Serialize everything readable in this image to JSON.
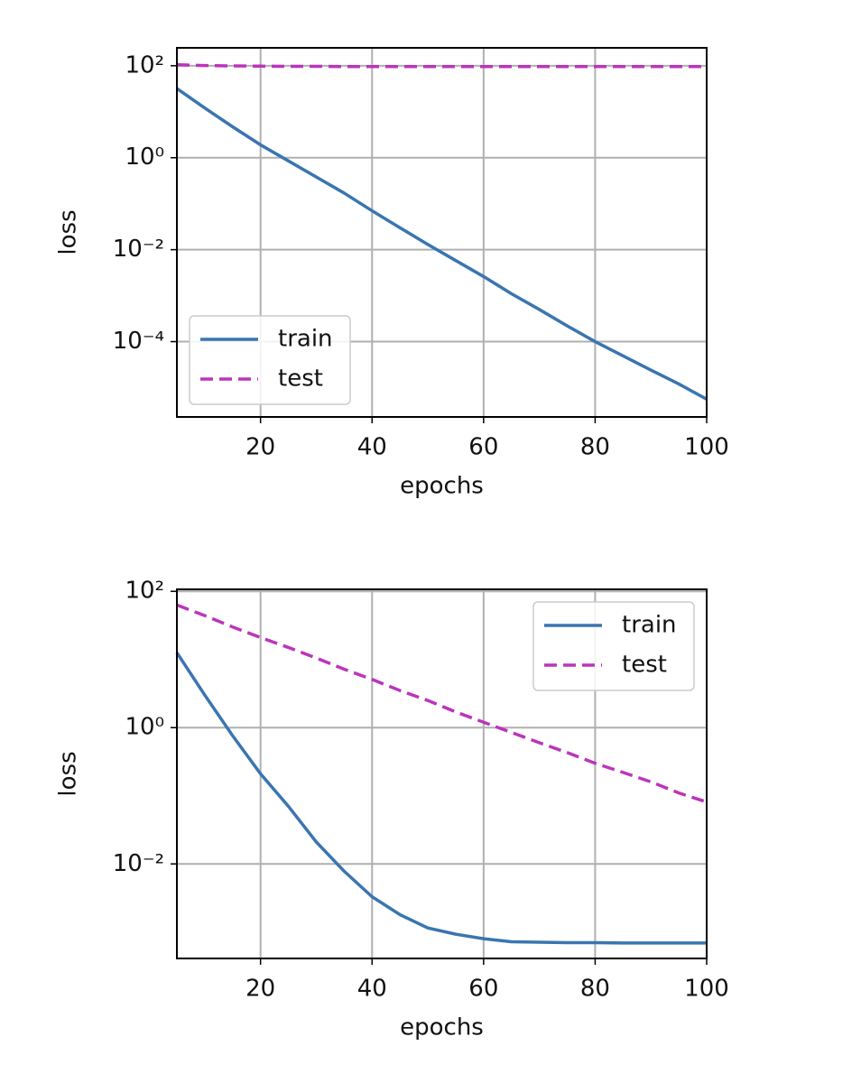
{
  "chart_data": [
    {
      "type": "line",
      "xlabel": "epochs",
      "ylabel": "loss",
      "yscale": "log",
      "grid": true,
      "legend": "lower left",
      "x": [
        5,
        10,
        15,
        20,
        25,
        30,
        35,
        40,
        45,
        50,
        55,
        60,
        65,
        70,
        75,
        80,
        85,
        90,
        95,
        100
      ],
      "xlim": [
        5,
        100
      ],
      "xticks": [
        20,
        40,
        60,
        80,
        100
      ],
      "ylim": [
        245,
        2.3e-06
      ],
      "yticks": [
        {
          "value": 100,
          "label": "10²"
        },
        {
          "value": 1,
          "label": "10⁰"
        },
        {
          "value": 0.01,
          "label": "10⁻²"
        },
        {
          "value": 0.0001,
          "label": "10⁻⁴"
        }
      ],
      "series": [
        {
          "name": "train",
          "color": "#3a75b0",
          "dash": false,
          "values": [
            32,
            12,
            4.7,
            1.9,
            0.85,
            0.38,
            0.17,
            0.07,
            0.03,
            0.013,
            0.0058,
            0.0026,
            0.0011,
            0.0005,
            0.00022,
            0.0001,
            4.9e-05,
            2.4e-05,
            1.2e-05,
            5.6e-06
          ]
        },
        {
          "name": "test",
          "color": "#bb35bb",
          "dash": true,
          "values": [
            105,
            101,
            99,
            98,
            97,
            97,
            96,
            96,
            96,
            96,
            96,
            96,
            96,
            96,
            96,
            96,
            96,
            96,
            96,
            96
          ]
        }
      ]
    },
    {
      "type": "line",
      "xlabel": "epochs",
      "ylabel": "loss",
      "yscale": "log",
      "grid": true,
      "legend": "upper right",
      "x": [
        5,
        10,
        15,
        20,
        25,
        30,
        35,
        40,
        45,
        50,
        55,
        60,
        65,
        70,
        75,
        80,
        85,
        90,
        95,
        100
      ],
      "xlim": [
        5,
        100
      ],
      "xticks": [
        20,
        40,
        60,
        80,
        100
      ],
      "ylim": [
        107,
        0.00041
      ],
      "yticks": [
        {
          "value": 100,
          "label": "10²"
        },
        {
          "value": 1,
          "label": "10⁰"
        },
        {
          "value": 0.01,
          "label": "10⁻²"
        }
      ],
      "series": [
        {
          "name": "train",
          "color": "#3a75b0",
          "dash": false,
          "values": [
            12.6,
            3,
            0.76,
            0.21,
            0.07,
            0.021,
            0.0078,
            0.0033,
            0.0018,
            0.00115,
            0.00093,
            0.0008,
            0.00072,
            0.00071,
            0.0007,
            0.0007,
            0.00069,
            0.00069,
            0.00069,
            0.00069
          ]
        },
        {
          "name": "test",
          "color": "#bb35bb",
          "dash": true,
          "values": [
            63,
            44,
            30,
            21,
            15,
            10.5,
            7.2,
            5.1,
            3.5,
            2.5,
            1.7,
            1.2,
            0.85,
            0.6,
            0.43,
            0.3,
            0.22,
            0.16,
            0.11,
            0.081
          ]
        }
      ]
    }
  ]
}
